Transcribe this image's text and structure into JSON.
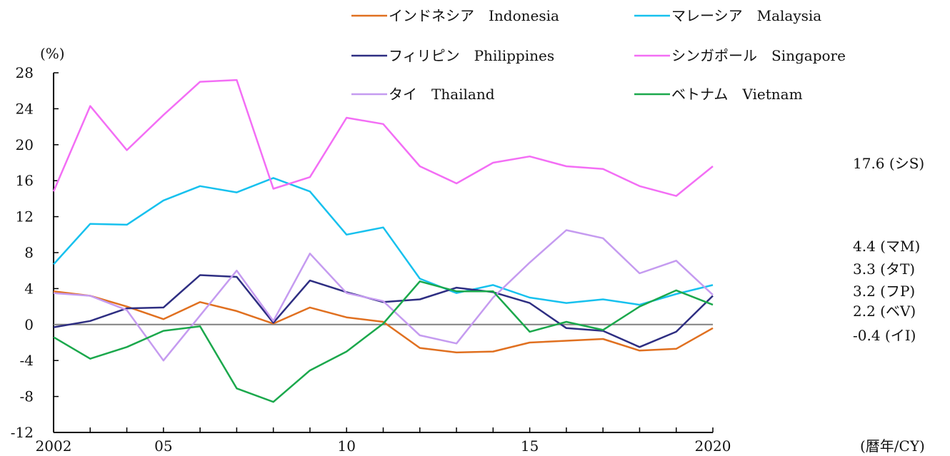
{
  "chart_data": {
    "type": "line",
    "ylabel": "(%)",
    "xlabel": "(暦年/CY)",
    "x": [
      2002,
      2003,
      2004,
      2005,
      2006,
      2007,
      2008,
      2009,
      2010,
      2011,
      2012,
      2013,
      2014,
      2015,
      2016,
      2017,
      2018,
      2019,
      2020
    ],
    "xlim": [
      2002,
      2020
    ],
    "ylim": [
      -12,
      28
    ],
    "yticks": [
      -12,
      -8,
      -4,
      0,
      4,
      8,
      12,
      16,
      20,
      24,
      28
    ],
    "xticks": [
      {
        "value": 2002,
        "label": "2002"
      },
      {
        "value": 2005,
        "label": "05"
      },
      {
        "value": 2010,
        "label": "10"
      },
      {
        "value": 2015,
        "label": "15"
      },
      {
        "value": 2020,
        "label": "2020"
      }
    ],
    "legend_position": "top",
    "grid": false,
    "series": [
      {
        "name": "インドネシア　Indonesia",
        "color": "#e07020",
        "values": [
          3.7,
          3.2,
          2.0,
          0.6,
          2.5,
          1.5,
          0.1,
          1.9,
          0.8,
          0.3,
          -2.6,
          -3.1,
          -3.0,
          -2.0,
          -1.8,
          -1.6,
          -2.9,
          -2.7,
          -0.4
        ]
      },
      {
        "name": "マレーシア　Malaysia",
        "color": "#17c1ee",
        "values": [
          6.7,
          11.2,
          11.1,
          13.8,
          15.4,
          14.7,
          16.3,
          14.8,
          10.0,
          10.8,
          5.1,
          3.5,
          4.4,
          3.0,
          2.4,
          2.8,
          2.2,
          3.4,
          4.4
        ]
      },
      {
        "name": "フィリピン　Philippines",
        "color": "#2e2e82",
        "values": [
          -0.3,
          0.4,
          1.8,
          1.9,
          5.5,
          5.3,
          0.2,
          4.9,
          3.6,
          2.5,
          2.8,
          4.1,
          3.6,
          2.4,
          -0.4,
          -0.7,
          -2.5,
          -0.8,
          3.2
        ]
      },
      {
        "name": "シンガポール　Singapore",
        "color": "#f36ef5",
        "values": [
          14.8,
          24.3,
          19.4,
          23.3,
          27.0,
          27.2,
          15.1,
          16.4,
          23.0,
          22.3,
          17.6,
          15.7,
          18.0,
          18.7,
          17.6,
          17.3,
          15.4,
          14.3,
          17.6
        ]
      },
      {
        "name": "タイ　Thailand",
        "color": "#c59bf0",
        "values": [
          3.5,
          3.2,
          1.6,
          -4.0,
          1.0,
          6.0,
          0.4,
          7.9,
          3.5,
          2.6,
          -1.2,
          -2.1,
          3.0,
          6.9,
          10.5,
          9.6,
          5.7,
          7.1,
          3.3
        ]
      },
      {
        "name": "ベトナム　Vietnam",
        "color": "#1ba84c",
        "values": [
          -1.4,
          -3.8,
          -2.5,
          -0.7,
          -0.2,
          -7.1,
          -8.6,
          -5.1,
          -3.0,
          0.1,
          4.8,
          3.7,
          3.7,
          -0.8,
          0.3,
          -0.6,
          2.0,
          3.8,
          2.2
        ]
      }
    ],
    "end_labels": [
      {
        "text": "17.6 (シS)"
      },
      {
        "text": "4.4 (マM)"
      },
      {
        "text": "3.3 (タT)"
      },
      {
        "text": "3.2 (フP)"
      },
      {
        "text": "2.2 (ベV)"
      },
      {
        "text": "-0.4 (イI)"
      }
    ]
  }
}
